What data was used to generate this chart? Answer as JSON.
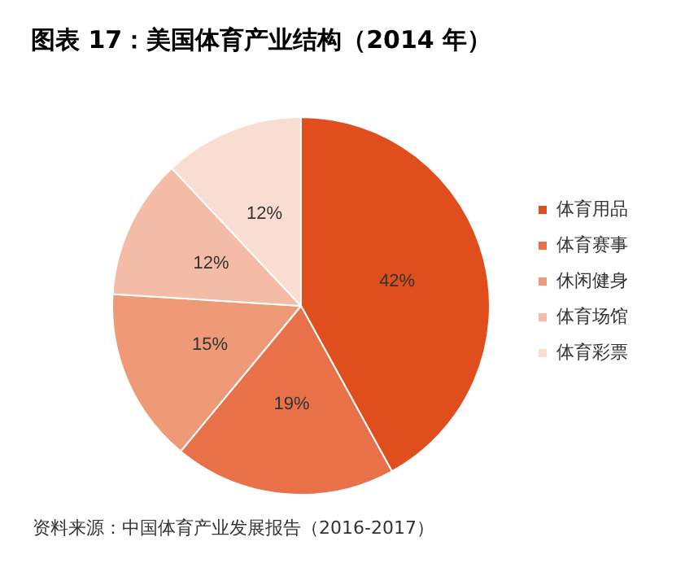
{
  "chart_data": {
    "type": "pie",
    "title": "图表 17：美国体育产业结构（2014 年）",
    "categories": [
      "体育用品",
      "体育赛事",
      "休闲健身",
      "体育场馆",
      "体育彩票"
    ],
    "values": [
      42,
      19,
      15,
      12,
      12
    ],
    "colors": [
      "#e04e1e",
      "#e8714a",
      "#ef9a76",
      "#f4bba6",
      "#f9ddd2"
    ],
    "value_labels": [
      "42%",
      "19%",
      "15%",
      "12%",
      "12%"
    ],
    "legend": "right",
    "annotations": [
      "资料来源：中国体育产业发展报告（2016-2017）"
    ]
  }
}
